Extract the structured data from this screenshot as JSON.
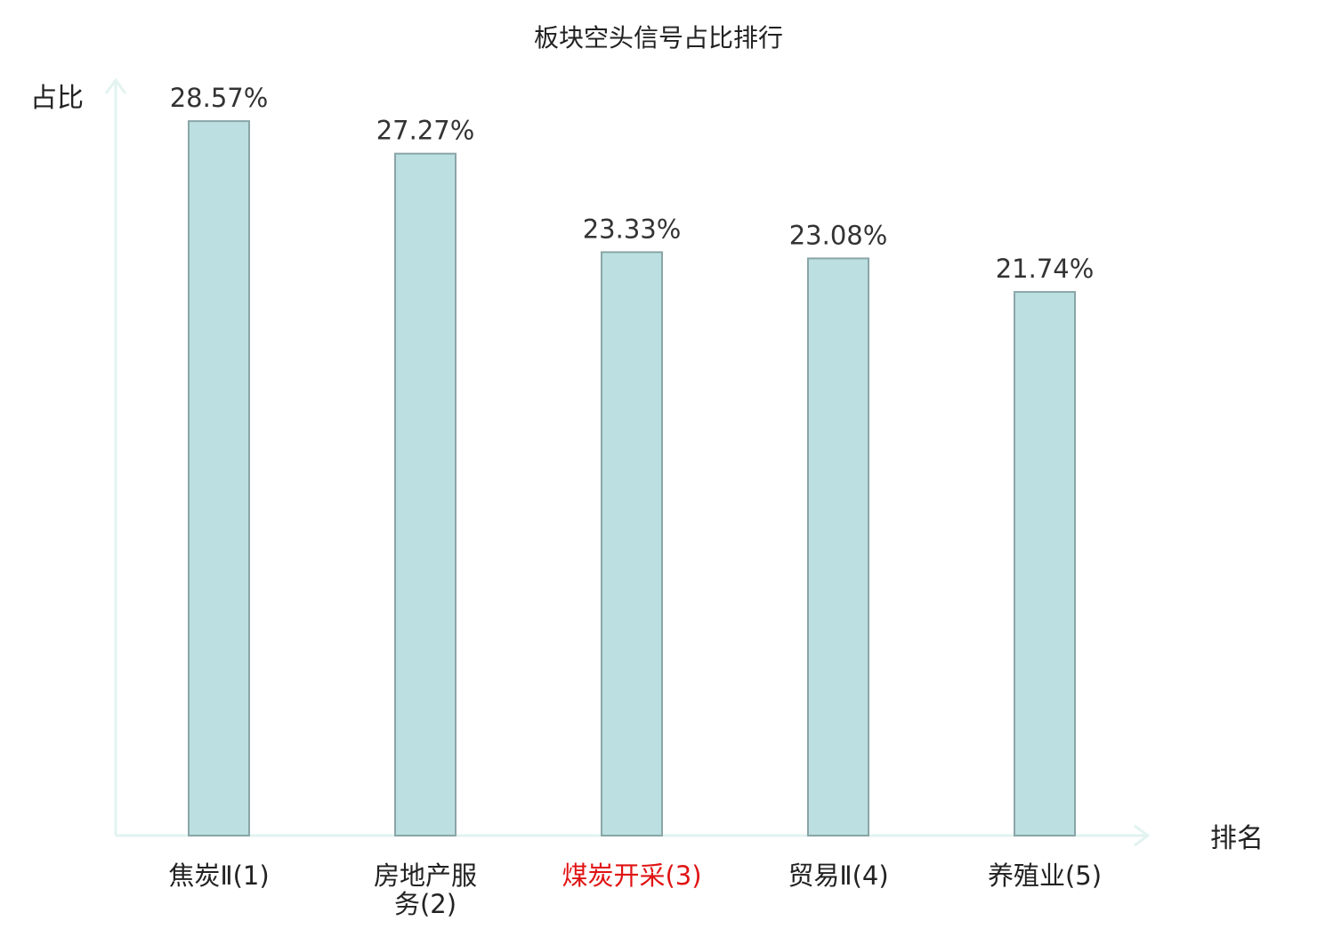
{
  "chart_data": {
    "type": "bar",
    "title": "板块空头信号占比排行",
    "ylabel": "占比",
    "xlabel": "排名",
    "categories": [
      [
        "焦炭Ⅱ(1)"
      ],
      [
        "房地产服",
        "务(2)"
      ],
      [
        "煤炭开采(3)"
      ],
      [
        "贸易Ⅱ(4)"
      ],
      [
        "养殖业(5)"
      ]
    ],
    "values": [
      28.57,
      27.27,
      23.33,
      23.08,
      21.74
    ],
    "value_labels": [
      "28.57%",
      "27.27%",
      "23.33%",
      "23.08%",
      "21.74%"
    ],
    "highlight_index": 2,
    "ylim": [
      0,
      29.5
    ],
    "grid": false
  },
  "colors": {
    "bar_fill": "#bce0e1",
    "bar_stroke": "#8aa5a7",
    "axis": "#e2f3f0",
    "text": "#222222",
    "value_label": "#333333",
    "highlight_label": "#e01414"
  }
}
